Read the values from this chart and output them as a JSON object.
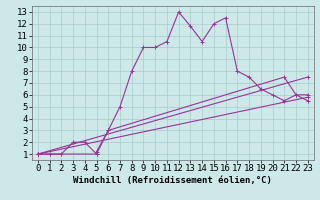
{
  "xlabel": "Windchill (Refroidissement éolien,°C)",
  "bg_color": "#cce8e8",
  "grid_color": "#aacccc",
  "line_color": "#993399",
  "xlim": [
    -0.5,
    23.5
  ],
  "ylim": [
    0.5,
    13.5
  ],
  "xticks": [
    0,
    1,
    2,
    3,
    4,
    5,
    6,
    7,
    8,
    9,
    10,
    11,
    12,
    13,
    14,
    15,
    16,
    17,
    18,
    19,
    20,
    21,
    22,
    23
  ],
  "yticks": [
    1,
    2,
    3,
    4,
    5,
    6,
    7,
    8,
    9,
    10,
    11,
    12,
    13
  ],
  "line1_x": [
    0,
    1,
    2,
    3,
    4,
    5,
    6,
    7,
    8,
    9,
    10,
    11,
    12,
    13,
    14,
    15,
    16,
    17,
    18,
    19,
    20,
    21,
    22,
    23
  ],
  "line1_y": [
    1,
    1,
    1,
    2,
    2,
    1,
    3,
    5,
    8,
    10,
    10,
    10.5,
    13,
    11.8,
    10.5,
    12,
    12.5,
    8,
    7.5,
    6.5,
    6,
    5.5,
    6,
    5.5
  ],
  "line2_x": [
    0,
    5,
    5,
    6,
    21,
    22,
    23
  ],
  "line2_y": [
    1,
    1,
    1.2,
    3,
    7.5,
    6,
    6
  ],
  "line3_x": [
    0,
    23
  ],
  "line3_y": [
    1,
    5.8
  ],
  "line4_x": [
    0,
    23
  ],
  "line4_y": [
    1,
    7.5
  ],
  "fontsize_xlabel": 6.5,
  "fontsize_ticks": 6.5
}
